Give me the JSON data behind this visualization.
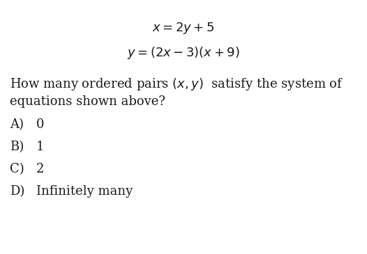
{
  "eq1": "$x = 2y + 5$",
  "eq2": "$y = (2x - 3)(x + 9)$",
  "question_part1": "How many ordered pairs $(x, y)$  satisfy the system of",
  "question_part2": "equations shown above?",
  "choices": [
    [
      "A)",
      "0"
    ],
    [
      "B)",
      "1"
    ],
    [
      "C)",
      "2"
    ],
    [
      "D)",
      "Infinitely many"
    ]
  ],
  "bg_color": "#ffffff",
  "text_color": "#1a1a1a",
  "eq_fontsize": 13,
  "question_fontsize": 13,
  "choice_fontsize": 13,
  "fig_width": 5.26,
  "fig_height": 3.65,
  "fig_dpi": 100
}
